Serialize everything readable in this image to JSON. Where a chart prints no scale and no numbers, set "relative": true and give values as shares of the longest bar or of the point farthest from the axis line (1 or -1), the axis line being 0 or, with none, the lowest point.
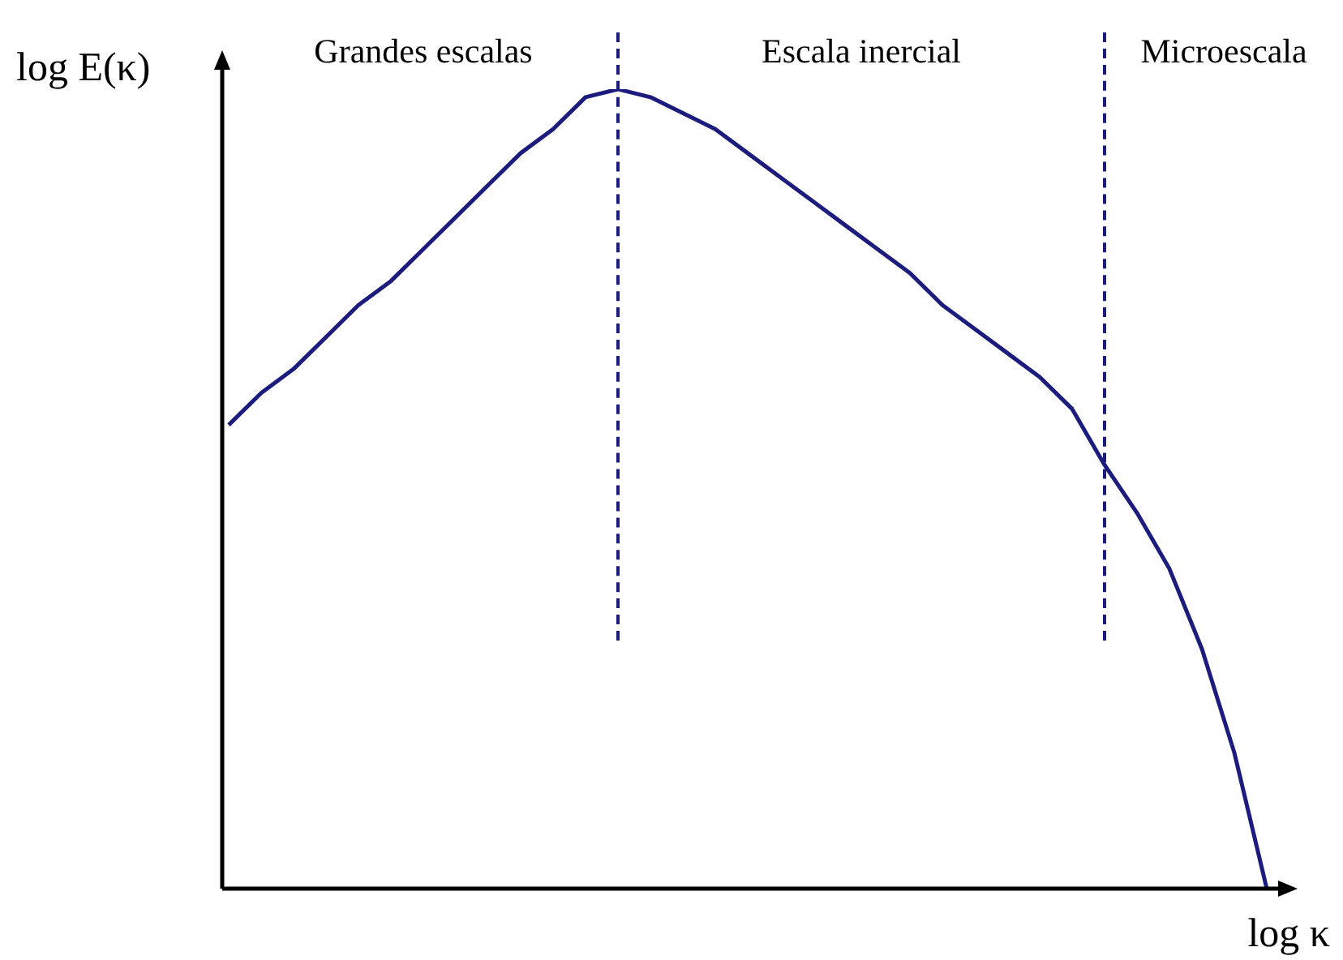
{
  "chart_data": {
    "type": "line",
    "relative": true,
    "xlabel": "log κ",
    "ylabel": "log E(κ)",
    "categories": [
      null,
      null,
      null,
      null,
      null,
      null,
      null,
      null,
      null,
      null,
      null,
      null,
      null,
      null,
      null,
      null,
      null,
      null,
      null,
      null,
      null,
      null,
      null,
      null,
      null,
      null,
      null,
      null,
      null,
      null,
      null,
      null,
      null
    ],
    "series": [
      {
        "color": "#1c1c7e",
        "values": [
          0.58,
          0.62,
          0.65,
          0.69,
          0.73,
          0.76,
          0.8,
          0.84,
          0.88,
          0.92,
          0.95,
          0.99,
          1.0,
          0.99,
          0.97,
          0.95,
          0.92,
          0.89,
          0.86,
          0.83,
          0.8,
          0.77,
          0.73,
          0.7,
          0.67,
          0.64,
          0.6,
          0.53,
          0.47,
          0.4,
          0.3,
          0.17,
          0
        ]
      }
    ],
    "annotations": [
      "Grandes escalas",
      "Escala inercial",
      "Microescala"
    ],
    "legend": false,
    "marker": "none",
    "line_style": "solid"
  }
}
